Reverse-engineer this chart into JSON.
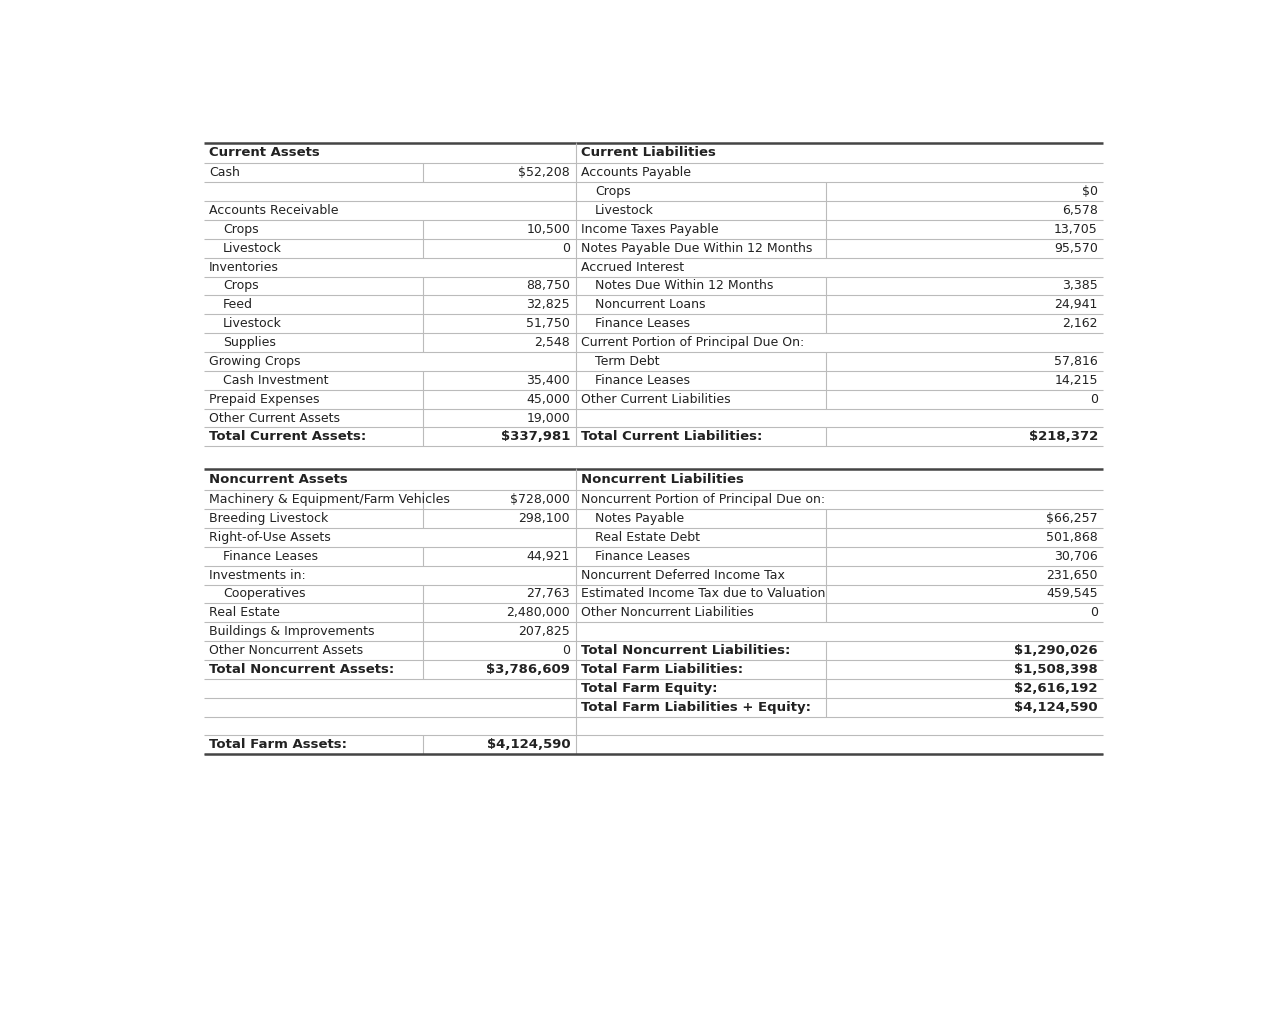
{
  "background_color": "#ffffff",
  "text_color": "#222222",
  "line_color": "#bbbbbb",
  "thick_line_color": "#444444",
  "font_size": 9.0,
  "bold_font_size": 9.5,
  "left_section1": [
    {
      "col1": "Current Assets",
      "col2": "",
      "bold": true,
      "indent": 0,
      "has_divider": false
    },
    {
      "col1": "Cash",
      "col2": "$52,208",
      "bold": false,
      "indent": 0,
      "has_divider": true
    },
    {
      "col1": "",
      "col2": "",
      "bold": false,
      "indent": 0,
      "has_divider": false
    },
    {
      "col1": "Accounts Receivable",
      "col2": "",
      "bold": false,
      "indent": 0,
      "has_divider": false
    },
    {
      "col1": "Crops",
      "col2": "10,500",
      "bold": false,
      "indent": 1,
      "has_divider": true
    },
    {
      "col1": "Livestock",
      "col2": "0",
      "bold": false,
      "indent": 1,
      "has_divider": true
    },
    {
      "col1": "Inventories",
      "col2": "",
      "bold": false,
      "indent": 0,
      "has_divider": false
    },
    {
      "col1": "Crops",
      "col2": "88,750",
      "bold": false,
      "indent": 1,
      "has_divider": true
    },
    {
      "col1": "Feed",
      "col2": "32,825",
      "bold": false,
      "indent": 1,
      "has_divider": true
    },
    {
      "col1": "Livestock",
      "col2": "51,750",
      "bold": false,
      "indent": 1,
      "has_divider": true
    },
    {
      "col1": "Supplies",
      "col2": "2,548",
      "bold": false,
      "indent": 1,
      "has_divider": true
    },
    {
      "col1": "Growing Crops",
      "col2": "",
      "bold": false,
      "indent": 0,
      "has_divider": false
    },
    {
      "col1": "Cash Investment",
      "col2": "35,400",
      "bold": false,
      "indent": 1,
      "has_divider": true
    },
    {
      "col1": "Prepaid Expenses",
      "col2": "45,000",
      "bold": false,
      "indent": 0,
      "has_divider": true
    },
    {
      "col1": "Other Current Assets",
      "col2": "19,000",
      "bold": false,
      "indent": 0,
      "has_divider": true
    },
    {
      "col1": "Total Current Assets:",
      "col2": "$337,981",
      "bold": true,
      "indent": 0,
      "has_divider": true
    }
  ],
  "right_section1": [
    {
      "col1": "Current Liabilities",
      "col2": "",
      "bold": true,
      "indent": 0,
      "has_divider": false
    },
    {
      "col1": "Accounts Payable",
      "col2": "",
      "bold": false,
      "indent": 0,
      "has_divider": false
    },
    {
      "col1": "Crops",
      "col2": "$0",
      "bold": false,
      "indent": 1,
      "has_divider": true
    },
    {
      "col1": "Livestock",
      "col2": "6,578",
      "bold": false,
      "indent": 1,
      "has_divider": true
    },
    {
      "col1": "Income Taxes Payable",
      "col2": "13,705",
      "bold": false,
      "indent": 0,
      "has_divider": true
    },
    {
      "col1": "Notes Payable Due Within 12 Months",
      "col2": "95,570",
      "bold": false,
      "indent": 0,
      "has_divider": true
    },
    {
      "col1": "Accrued Interest",
      "col2": "",
      "bold": false,
      "indent": 0,
      "has_divider": false
    },
    {
      "col1": "Notes Due Within 12 Months",
      "col2": "3,385",
      "bold": false,
      "indent": 1,
      "has_divider": true
    },
    {
      "col1": "Noncurrent Loans",
      "col2": "24,941",
      "bold": false,
      "indent": 1,
      "has_divider": true
    },
    {
      "col1": "Finance Leases",
      "col2": "2,162",
      "bold": false,
      "indent": 1,
      "has_divider": true
    },
    {
      "col1": "Current Portion of Principal Due On:",
      "col2": "",
      "bold": false,
      "indent": 0,
      "has_divider": false
    },
    {
      "col1": "Term Debt",
      "col2": "57,816",
      "bold": false,
      "indent": 1,
      "has_divider": true
    },
    {
      "col1": "Finance Leases",
      "col2": "14,215",
      "bold": false,
      "indent": 1,
      "has_divider": true
    },
    {
      "col1": "Other Current Liabilities",
      "col2": "0",
      "bold": false,
      "indent": 0,
      "has_divider": true
    },
    {
      "col1": "",
      "col2": "",
      "bold": false,
      "indent": 0,
      "has_divider": false
    },
    {
      "col1": "Total Current Liabilities:",
      "col2": "$218,372",
      "bold": true,
      "indent": 0,
      "has_divider": true
    }
  ],
  "left_section2": [
    {
      "col1": "Noncurrent Assets",
      "col2": "",
      "bold": true,
      "indent": 0,
      "has_divider": false
    },
    {
      "col1": "Machinery & Equipment/Farm Vehicles",
      "col2": "$728,000",
      "bold": false,
      "indent": 0,
      "has_divider": true
    },
    {
      "col1": "Breeding Livestock",
      "col2": "298,100",
      "bold": false,
      "indent": 0,
      "has_divider": true
    },
    {
      "col1": "Right-of-Use Assets",
      "col2": "",
      "bold": false,
      "indent": 0,
      "has_divider": false
    },
    {
      "col1": "Finance Leases",
      "col2": "44,921",
      "bold": false,
      "indent": 1,
      "has_divider": true
    },
    {
      "col1": "Investments in:",
      "col2": "",
      "bold": false,
      "indent": 0,
      "has_divider": false
    },
    {
      "col1": "Cooperatives",
      "col2": "27,763",
      "bold": false,
      "indent": 1,
      "has_divider": true
    },
    {
      "col1": "Real Estate",
      "col2": "2,480,000",
      "bold": false,
      "indent": 0,
      "has_divider": true
    },
    {
      "col1": "Buildings & Improvements",
      "col2": "207,825",
      "bold": false,
      "indent": 0,
      "has_divider": true
    },
    {
      "col1": "Other Noncurrent Assets",
      "col2": "0",
      "bold": false,
      "indent": 0,
      "has_divider": true
    },
    {
      "col1": "Total Noncurrent Assets:",
      "col2": "$3,786,609",
      "bold": true,
      "indent": 0,
      "has_divider": true
    },
    {
      "col1": "",
      "col2": "",
      "bold": false,
      "indent": 0,
      "has_divider": false
    },
    {
      "col1": "",
      "col2": "",
      "bold": false,
      "indent": 0,
      "has_divider": false
    },
    {
      "col1": "",
      "col2": "",
      "bold": false,
      "indent": 0,
      "has_divider": false
    },
    {
      "col1": "Total Farm Assets:",
      "col2": "$4,124,590",
      "bold": true,
      "indent": 0,
      "has_divider": true
    }
  ],
  "right_section2": [
    {
      "col1": "Noncurrent Liabilities",
      "col2": "",
      "bold": true,
      "indent": 0,
      "has_divider": false
    },
    {
      "col1": "Noncurrent Portion of Principal Due on:",
      "col2": "",
      "bold": false,
      "indent": 0,
      "has_divider": false
    },
    {
      "col1": "Notes Payable",
      "col2": "$66,257",
      "bold": false,
      "indent": 1,
      "has_divider": true
    },
    {
      "col1": "Real Estate Debt",
      "col2": "501,868",
      "bold": false,
      "indent": 1,
      "has_divider": true
    },
    {
      "col1": "Finance Leases",
      "col2": "30,706",
      "bold": false,
      "indent": 1,
      "has_divider": true
    },
    {
      "col1": "Noncurrent Deferred Income Tax",
      "col2": "231,650",
      "bold": false,
      "indent": 0,
      "has_divider": true
    },
    {
      "col1": "Estimated Income Tax due to Valuation",
      "col2": "459,545",
      "bold": false,
      "indent": 0,
      "has_divider": true
    },
    {
      "col1": "Other Noncurrent Liabilities",
      "col2": "0",
      "bold": false,
      "indent": 0,
      "has_divider": true
    },
    {
      "col1": "",
      "col2": "",
      "bold": false,
      "indent": 0,
      "has_divider": false
    },
    {
      "col1": "Total Noncurrent Liabilities:",
      "col2": "$1,290,026",
      "bold": true,
      "indent": 0,
      "has_divider": true
    },
    {
      "col1": "Total Farm Liabilities:",
      "col2": "$1,508,398",
      "bold": true,
      "indent": 0,
      "has_divider": true
    },
    {
      "col1": "Total Farm Equity:",
      "col2": "$2,616,192",
      "bold": true,
      "indent": 0,
      "has_divider": true
    },
    {
      "col1": "Total Farm Liabilities + Equity:",
      "col2": "$4,124,590",
      "bold": true,
      "indent": 0,
      "has_divider": true
    },
    {
      "col1": "",
      "col2": "",
      "bold": false,
      "indent": 0,
      "has_divider": false
    },
    {
      "col1": "",
      "col2": "",
      "bold": false,
      "indent": 0,
      "has_divider": false
    }
  ]
}
